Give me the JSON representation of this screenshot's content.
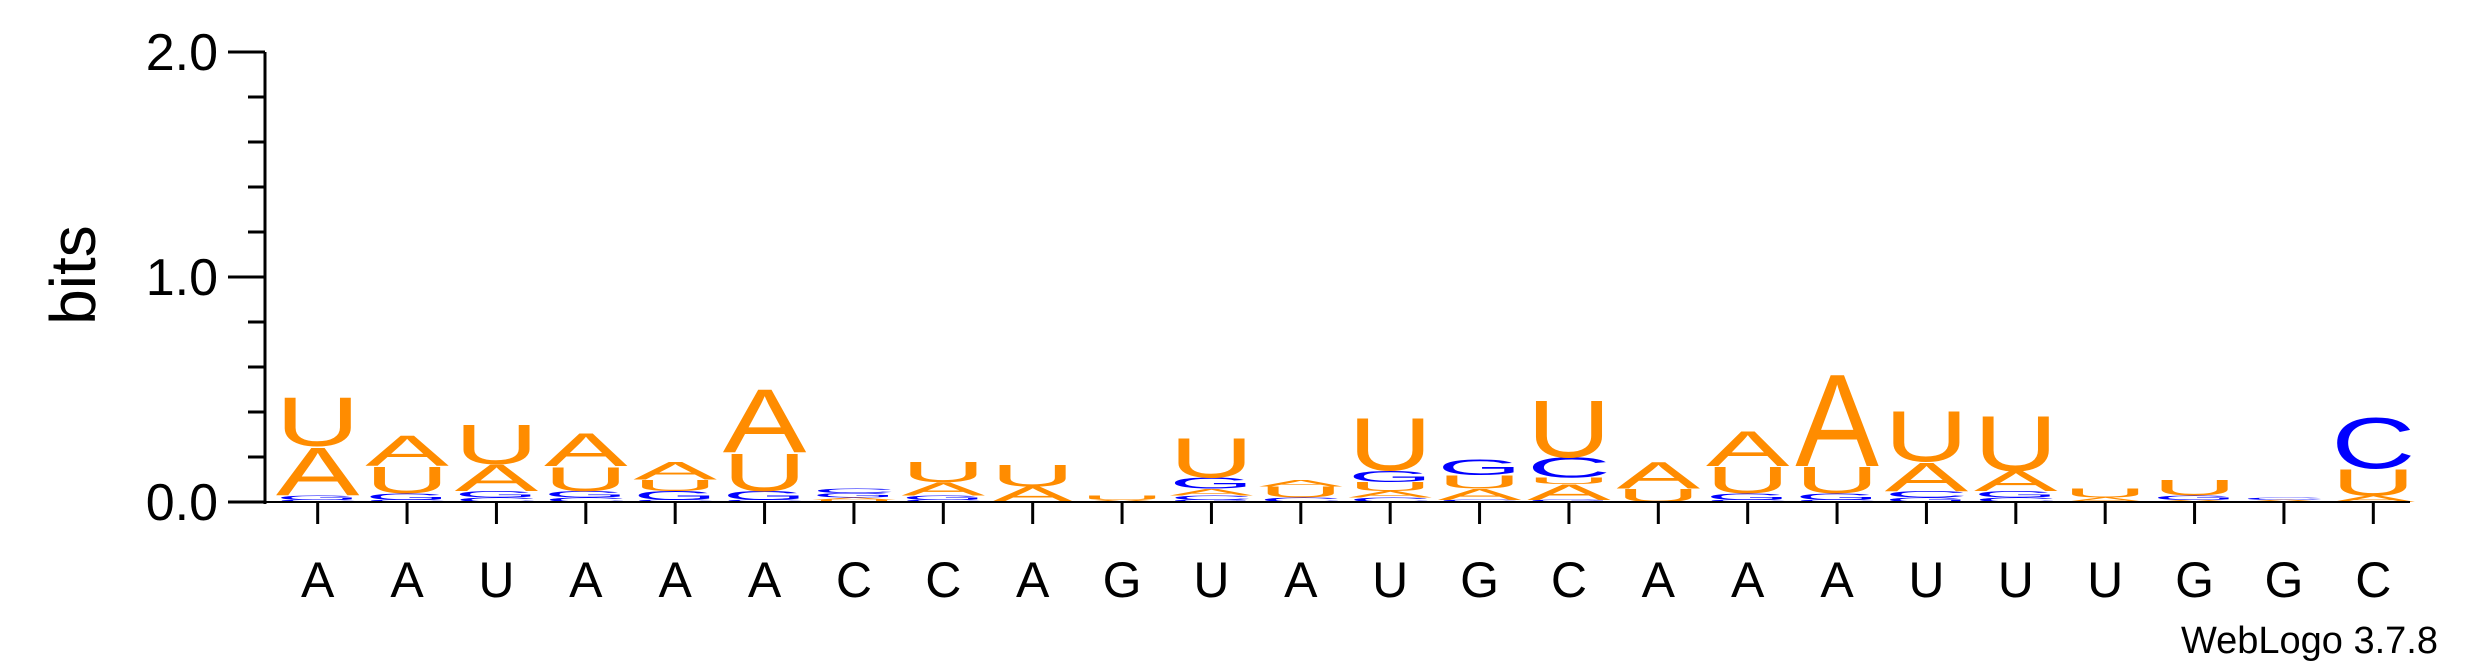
{
  "chart_data": {
    "type": "sequence-logo",
    "ylabel": "bits",
    "ylim": [
      0,
      2.0
    ],
    "yticks": [
      {
        "value": 2.0,
        "label": "2.0"
      },
      {
        "value": 1.0,
        "label": "1.0"
      },
      {
        "value": 0.0,
        "label": "0.0"
      }
    ],
    "categories": [
      "A",
      "A",
      "U",
      "A",
      "A",
      "A",
      "C",
      "C",
      "A",
      "G",
      "U",
      "A",
      "U",
      "G",
      "C",
      "A",
      "A",
      "A",
      "U",
      "U",
      "U",
      "G",
      "G",
      "C"
    ],
    "colors": {
      "A": "#ff8c00",
      "U": "#ff8c00",
      "C": "#0000ff",
      "G": "#0000ff"
    },
    "stacks": [
      [
        {
          "base": "C",
          "bits": 0.01
        },
        {
          "base": "G",
          "bits": 0.02
        },
        {
          "base": "A",
          "bits": 0.22
        },
        {
          "base": "U",
          "bits": 0.22
        }
      ],
      [
        {
          "base": "C",
          "bits": 0.01
        },
        {
          "base": "G",
          "bits": 0.03
        },
        {
          "base": "U",
          "bits": 0.12
        },
        {
          "base": "A",
          "bits": 0.14
        }
      ],
      [
        {
          "base": "C",
          "bits": 0.02
        },
        {
          "base": "G",
          "bits": 0.03
        },
        {
          "base": "A",
          "bits": 0.12
        },
        {
          "base": "U",
          "bits": 0.18
        }
      ],
      [
        {
          "base": "C",
          "bits": 0.02
        },
        {
          "base": "G",
          "bits": 0.03
        },
        {
          "base": "U",
          "bits": 0.11
        },
        {
          "base": "A",
          "bits": 0.15
        }
      ],
      [
        {
          "base": "C",
          "bits": 0.01
        },
        {
          "base": "G",
          "bits": 0.04
        },
        {
          "base": "U",
          "bits": 0.05
        },
        {
          "base": "A",
          "bits": 0.08
        }
      ],
      [
        {
          "base": "C",
          "bits": 0.01
        },
        {
          "base": "G",
          "bits": 0.04
        },
        {
          "base": "U",
          "bits": 0.17
        },
        {
          "base": "A",
          "bits": 0.29
        }
      ],
      [
        {
          "base": "U",
          "bits": 0.01
        },
        {
          "base": "A",
          "bits": 0.01
        },
        {
          "base": "G",
          "bits": 0.02
        },
        {
          "base": "C",
          "bits": 0.02
        }
      ],
      [
        {
          "base": "C",
          "bits": 0.01
        },
        {
          "base": "G",
          "bits": 0.02
        },
        {
          "base": "A",
          "bits": 0.06
        },
        {
          "base": "U",
          "bits": 0.09
        }
      ],
      [
        {
          "base": "A",
          "bits": 0.07
        },
        {
          "base": "U",
          "bits": 0.1
        }
      ],
      [
        {
          "base": "A",
          "bits": 0.01
        },
        {
          "base": "U",
          "bits": 0.02
        }
      ],
      [
        {
          "base": "G",
          "bits": 0.01
        },
        {
          "base": "C",
          "bits": 0.02
        },
        {
          "base": "A",
          "bits": 0.03
        },
        {
          "base": "G",
          "bits": 0.05
        },
        {
          "base": "U",
          "bits": 0.18
        }
      ],
      [
        {
          "base": "C",
          "bits": 0.02
        },
        {
          "base": "U",
          "bits": 0.05
        },
        {
          "base": "A",
          "bits": 0.03
        }
      ],
      [
        {
          "base": "C",
          "bits": 0.02
        },
        {
          "base": "A",
          "bits": 0.03
        },
        {
          "base": "U",
          "bits": 0.04
        },
        {
          "base": "G",
          "bits": 0.05
        },
        {
          "base": "U",
          "bits": 0.24
        }
      ],
      [
        {
          "base": "C",
          "bits": 0.01
        },
        {
          "base": "A",
          "bits": 0.05
        },
        {
          "base": "U",
          "bits": 0.06
        },
        {
          "base": "G",
          "bits": 0.07
        }
      ],
      [
        {
          "base": "G",
          "bits": 0.01
        },
        {
          "base": "A",
          "bits": 0.07
        },
        {
          "base": "U",
          "bits": 0.03
        },
        {
          "base": "C",
          "bits": 0.09
        },
        {
          "base": "U",
          "bits": 0.26
        }
      ],
      [
        {
          "base": "U",
          "bits": 0.06
        },
        {
          "base": "A",
          "bits": 0.12
        }
      ],
      [
        {
          "base": "C",
          "bits": 0.01
        },
        {
          "base": "G",
          "bits": 0.03
        },
        {
          "base": "U",
          "bits": 0.12
        },
        {
          "base": "A",
          "bits": 0.16
        }
      ],
      [
        {
          "base": "C",
          "bits": 0.01
        },
        {
          "base": "G",
          "bits": 0.03
        },
        {
          "base": "U",
          "bits": 0.12
        },
        {
          "base": "A",
          "bits": 0.42
        }
      ],
      [
        {
          "base": "G",
          "bits": 0.02
        },
        {
          "base": "C",
          "bits": 0.03
        },
        {
          "base": "A",
          "bits": 0.13
        },
        {
          "base": "U",
          "bits": 0.23
        }
      ],
      [
        {
          "base": "C",
          "bits": 0.02
        },
        {
          "base": "G",
          "bits": 0.03
        },
        {
          "base": "A",
          "bits": 0.09
        },
        {
          "base": "U",
          "bits": 0.25
        }
      ],
      [
        {
          "base": "A",
          "bits": 0.02
        },
        {
          "base": "U",
          "bits": 0.04
        }
      ],
      [
        {
          "base": "A",
          "bits": 0.01
        },
        {
          "base": "G",
          "bits": 0.02
        },
        {
          "base": "U",
          "bits": 0.07
        }
      ],
      [
        {
          "base": "A",
          "bits": 0.01
        },
        {
          "base": "C",
          "bits": 0.01
        }
      ],
      [
        {
          "base": "A",
          "bits": 0.03
        },
        {
          "base": "U",
          "bits": 0.12
        },
        {
          "base": "C",
          "bits": 0.23
        }
      ]
    ]
  },
  "credit": "WebLogo 3.7.8"
}
